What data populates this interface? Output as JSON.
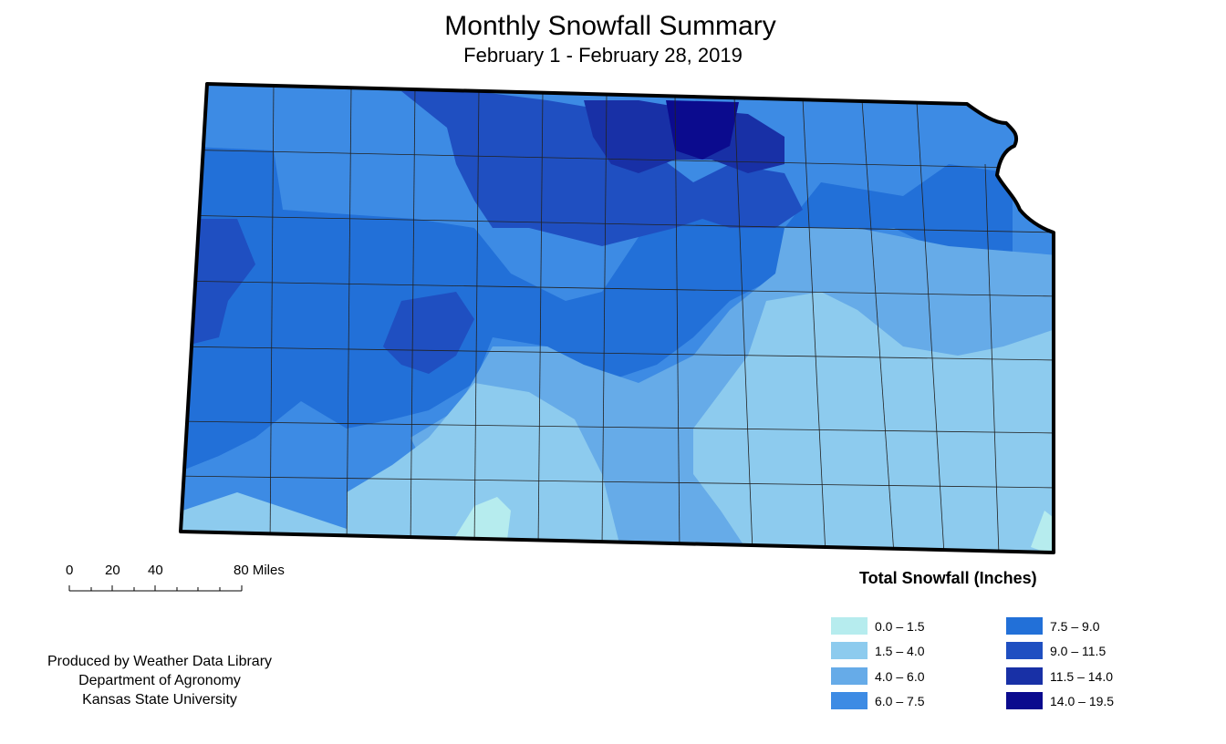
{
  "title": "Monthly Snowfall Summary",
  "subtitle": "February 1 - February 28, 2019",
  "scale_bar": {
    "ticks": [
      "0",
      "20",
      "40",
      "80 Miles"
    ]
  },
  "credits": [
    "Produced by Weather Data Library",
    "Department of Agronomy",
    "Kansas State University"
  ],
  "legend": {
    "title": "Total Snowfall (Inches)",
    "classes": [
      {
        "label": "0.0 – 1.5",
        "color": "#b6ecee"
      },
      {
        "label": "1.5 – 4.0",
        "color": "#8dcbee"
      },
      {
        "label": "4.0 – 6.0",
        "color": "#66abe8"
      },
      {
        "label": "6.0 – 7.5",
        "color": "#3d8be4"
      },
      {
        "label": "7.5 – 9.0",
        "color": "#2270d8"
      },
      {
        "label": "9.0 – 11.5",
        "color": "#1f4fc1"
      },
      {
        "label": "11.5 – 14.0",
        "color": "#1830a6"
      },
      {
        "label": "14.0 – 19.5",
        "color": "#0b0b8e"
      }
    ]
  },
  "colors": {
    "outline": "#000000",
    "county_lines": "#222222"
  }
}
